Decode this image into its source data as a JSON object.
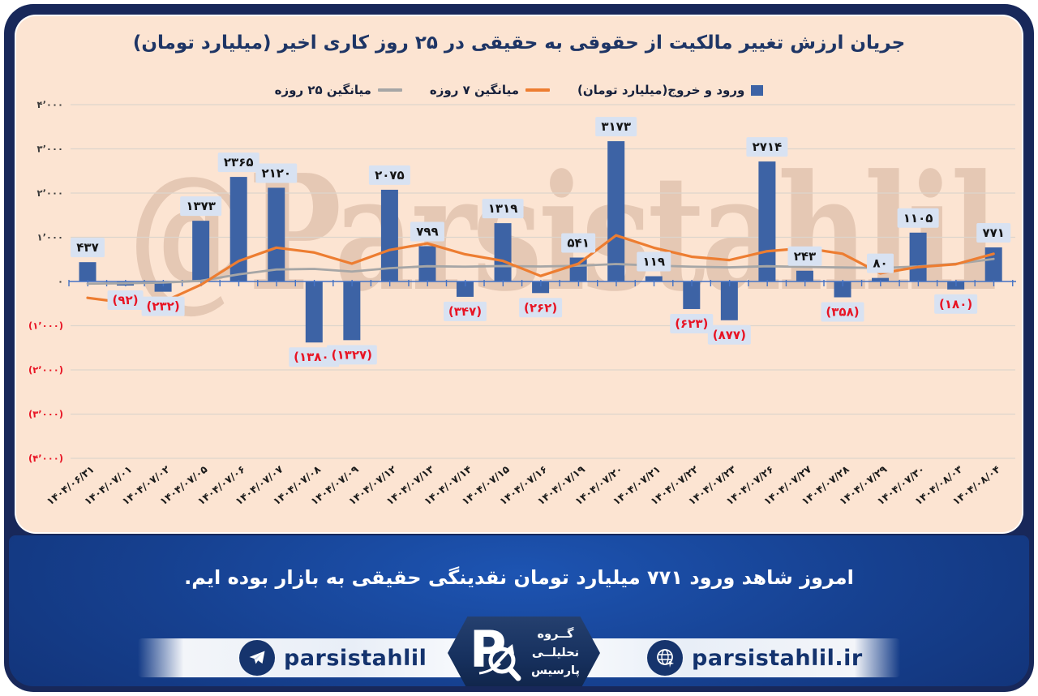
{
  "page": {
    "watermark": "@Parsistahlil",
    "summary_text": "امروز شاهد ورود ۷۷۱ میلیارد تومان نقدینگی حقیقی به بازار بوده ایم."
  },
  "footer": {
    "telegram_handle": "parsistahlil",
    "website": "parsistahlil.ir",
    "logo_letter": "P",
    "brand_lines": [
      "گــروه",
      "تحلیلــی",
      "پارسیس"
    ]
  },
  "colors": {
    "card_bg": "#fce4d2",
    "frame_navy": "#18285a",
    "bar_blue": "#3d63a5",
    "line_orange": "#ed7d31",
    "line_gray": "#a6a6a6",
    "label_bg": "#d8e2f2",
    "negative_red": "#e81424",
    "axis_blue": "#4472c4",
    "gridline": "#ddd5cc",
    "title_navy": "#1e3565",
    "footer_text_navy": "#14336e"
  },
  "chart_data": {
    "type": "bar",
    "title": "جریان ارزش تغییر مالکیت از حقوقی به حقیقی در ۲۵ روز کاری اخیر (میلیارد تومان)",
    "grid": true,
    "legend_position": "top",
    "ylim": [
      -4000,
      4000
    ],
    "yticks": {
      "values": [
        4000,
        3000,
        2000,
        1000,
        0,
        -1000,
        -2000,
        -3000,
        -4000
      ],
      "labels": [
        "۴٬۰۰۰",
        "۳٬۰۰۰",
        "۲٬۰۰۰",
        "۱٬۰۰۰",
        "۰",
        "(۱٬۰۰۰)",
        "(۲٬۰۰۰)",
        "(۳٬۰۰۰)",
        "(۴٬۰۰۰)"
      ]
    },
    "categories": [
      "۱۴۰۴/۰۶/۳۱",
      "۱۴۰۴/۰۷/۰۱",
      "۱۴۰۴/۰۷/۰۲",
      "۱۴۰۴/۰۷/۰۵",
      "۱۴۰۴/۰۷/۰۶",
      "۱۴۰۴/۰۷/۰۷",
      "۱۴۰۴/۰۷/۰۸",
      "۱۴۰۴/۰۷/۰۹",
      "۱۴۰۴/۰۷/۱۲",
      "۱۴۰۴/۰۷/۱۳",
      "۱۴۰۴/۰۷/۱۴",
      "۱۴۰۴/۰۷/۱۵",
      "۱۴۰۴/۰۷/۱۶",
      "۱۴۰۴/۰۷/۱۹",
      "۱۴۰۴/۰۷/۲۰",
      "۱۴۰۴/۰۷/۲۱",
      "۱۴۰۴/۰۷/۲۲",
      "۱۴۰۴/۰۷/۲۳",
      "۱۴۰۴/۰۷/۲۶",
      "۱۴۰۴/۰۷/۲۷",
      "۱۴۰۴/۰۷/۲۸",
      "۱۴۰۴/۰۷/۲۹",
      "۱۴۰۴/۰۷/۳۰",
      "۱۴۰۴/۰۸/۰۳",
      "۱۴۰۴/۰۸/۰۴"
    ],
    "series": [
      {
        "name": "ورود و خروج(میلیارد تومان)",
        "type": "bar",
        "color": "#3d63a5",
        "values": [
          437,
          -92,
          -232,
          1373,
          2365,
          2120,
          -1380,
          -1327,
          2075,
          799,
          -347,
          1319,
          -262,
          541,
          3173,
          119,
          -623,
          -877,
          2714,
          243,
          -358,
          80,
          1105,
          -180,
          771
        ],
        "labels": [
          "۴۳۷",
          "(۹۲)",
          "(۲۳۲)",
          "۱۳۷۳",
          "۲۳۶۵",
          "۲۱۲۰",
          "(۱۳۸۰)",
          "(۱۳۲۷)",
          "۲۰۷۵",
          "۷۹۹",
          "(۳۴۷)",
          "۱۳۱۹",
          "(۲۶۲)",
          "۵۴۱",
          "۳۱۷۳",
          "۱۱۹",
          "(۶۲۳)",
          "(۸۷۷)",
          "۲۷۱۴",
          "۲۴۳",
          "(۳۵۸)",
          "۸۰",
          "۱۱۰۵",
          "(۱۸۰)",
          "۷۷۱"
        ]
      },
      {
        "name": "میانگین ۷ روزه",
        "type": "line",
        "color": "#ed7d31",
        "values": [
          -370,
          -480,
          -465,
          -75,
          460,
          765,
          656,
          404,
          713,
          861,
          615,
          466,
          125,
          400,
          1043,
          763,
          560,
          484,
          684,
          756,
          627,
          185,
          326,
          390,
          625
        ]
      },
      {
        "name": "میانگین ۲۵ روزه",
        "type": "line",
        "color": "#a6a6a6",
        "values": [
          -50,
          -40,
          -25,
          15,
          160,
          270,
          285,
          225,
          300,
          345,
          335,
          350,
          340,
          355,
          395,
          360,
          335,
          320,
          345,
          330,
          318,
          305,
          340,
          400,
          510
        ]
      }
    ]
  }
}
